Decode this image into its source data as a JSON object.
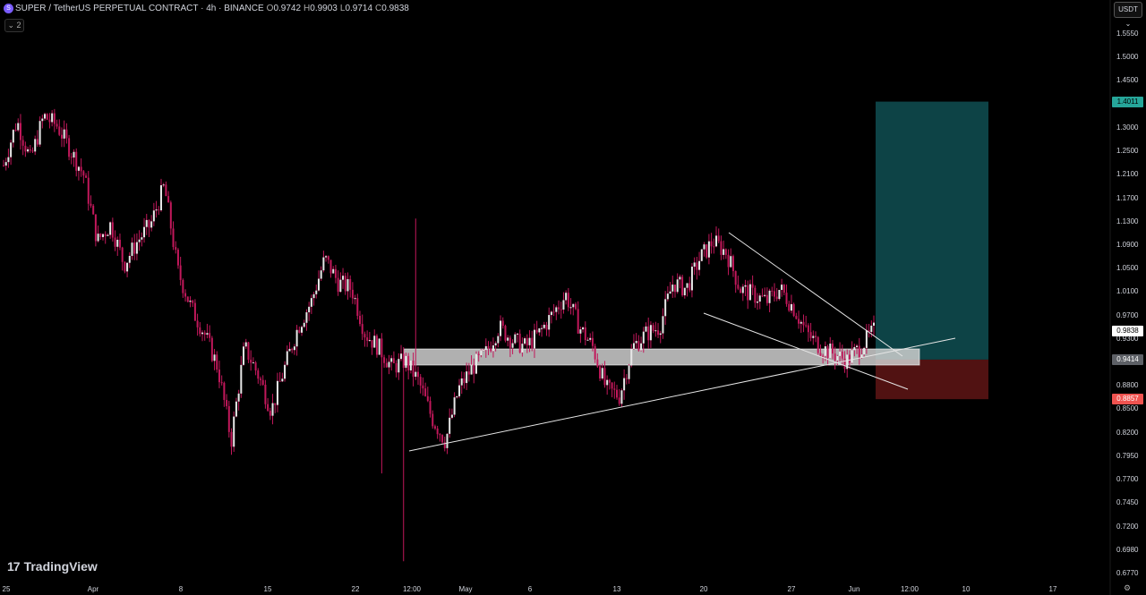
{
  "header": {
    "title": "SUPER / TetherUS PERPETUAL CONTRACT · 4h · BINANCE",
    "icon": "super-coin-icon",
    "icon_glyph": "S",
    "open_label": "O",
    "open": "0.9742",
    "high_label": "H",
    "high": "0.9903",
    "low_label": "L",
    "low": "0.9714",
    "close_label": "C",
    "close": "0.9838"
  },
  "indicator_toggle": "⌄ 2",
  "currency_button": "USDT ⌄",
  "logo": {
    "mark": "17",
    "text": "TradingView"
  },
  "price_axis": {
    "ticks": [
      "1.5550",
      "1.5000",
      "1.4500",
      "1.3500",
      "1.3000",
      "1.2500",
      "1.2100",
      "1.1700",
      "1.1300",
      "1.0900",
      "1.0500",
      "1.0100",
      "0.9700",
      "0.9300",
      "0.9100",
      "0.8800",
      "0.8500",
      "0.8200",
      "0.7950",
      "0.7700",
      "0.7450",
      "0.7200",
      "0.6980",
      "0.6770"
    ]
  },
  "price_tags": {
    "target": "1.4011",
    "current": "0.9838",
    "entry": "0.9414",
    "stop": "0.8857"
  },
  "time_axis": {
    "ticks": [
      "25",
      "Apr",
      "8",
      "15",
      "22",
      "12:00",
      "May",
      "6",
      "13",
      "20",
      "27",
      "Jun",
      "12:00",
      "10",
      "17"
    ]
  },
  "colors": {
    "background": "#000000",
    "candle": "#e8e8e8",
    "wick": "#c2185b",
    "target_zone": "#0f4f52",
    "stop_zone": "#5a1414",
    "support_zone": "#cfcfcf",
    "current_tag_bg": "#ffffff",
    "target_tag_bg": "#26a69a",
    "stop_tag_bg": "#ef5350",
    "entry_tag_bg": "#5d6066"
  },
  "chart_data": {
    "type": "candlestick",
    "title": "SUPER / TetherUS PERPETUAL CONTRACT · 4h · BINANCE",
    "timeframe": "4h",
    "y_scale": "log",
    "ylim": [
      0.677,
      1.555
    ],
    "close_path": [
      [
        "Mar 25",
        1.27
      ],
      [
        "Mar 26",
        1.36
      ],
      [
        "Mar 27",
        1.28
      ],
      [
        "Mar 29",
        1.37
      ],
      [
        "Apr 1",
        1.35
      ],
      [
        "Apr 2",
        1.3
      ],
      [
        "Apr 3",
        1.25
      ],
      [
        "Apr 4",
        1.13
      ],
      [
        "Apr 5",
        1.16
      ],
      [
        "Apr 6",
        1.09
      ],
      [
        "Apr 7",
        1.13
      ],
      [
        "Apr 8",
        1.16
      ],
      [
        "Apr 9",
        1.23
      ],
      [
        "Apr 10",
        1.08
      ],
      [
        "Apr 11",
        1.02
      ],
      [
        "Apr 12",
        0.98
      ],
      [
        "Apr 13",
        0.93
      ],
      [
        "Apr 14",
        0.83
      ],
      [
        "Apr 15",
        0.96
      ],
      [
        "Apr 16",
        0.92
      ],
      [
        "Apr 17",
        0.87
      ],
      [
        "Apr 18",
        0.93
      ],
      [
        "Apr 19",
        0.99
      ],
      [
        "Apr 20",
        1.03
      ],
      [
        "Apr 22",
        1.1
      ],
      [
        "Apr 23",
        1.06
      ],
      [
        "Apr 24",
        1.05
      ],
      [
        "Apr 25",
        0.98
      ],
      [
        "Apr 26",
        0.96
      ],
      [
        "Apr 27",
        0.93
      ],
      [
        "Apr 28",
        0.94
      ],
      [
        "Apr 29",
        0.91
      ],
      [
        "Apr 30",
        0.86
      ],
      [
        "May 1",
        0.83
      ],
      [
        "May 2",
        0.9
      ],
      [
        "May 3",
        0.93
      ],
      [
        "May 4",
        0.95
      ],
      [
        "May 5",
        0.99
      ],
      [
        "May 6",
        0.97
      ],
      [
        "May 7",
        0.96
      ],
      [
        "May 8",
        0.98
      ],
      [
        "May 9",
        1.01
      ],
      [
        "May 10",
        1.04
      ],
      [
        "May 11",
        0.99
      ],
      [
        "May 12",
        0.96
      ],
      [
        "May 13",
        0.9
      ],
      [
        "May 14",
        0.89
      ],
      [
        "May 15",
        0.96
      ],
      [
        "May 16",
        0.98
      ],
      [
        "May 17",
        0.99
      ],
      [
        "May 18",
        1.06
      ],
      [
        "May 19",
        1.05
      ],
      [
        "May 20",
        1.1
      ],
      [
        "May 21",
        1.13
      ],
      [
        "May 22",
        1.11
      ],
      [
        "May 23",
        1.05
      ],
      [
        "May 24",
        1.04
      ],
      [
        "May 25",
        1.03
      ],
      [
        "May 26",
        1.05
      ],
      [
        "May 27",
        1.02
      ],
      [
        "May 28",
        0.98
      ],
      [
        "May 29",
        0.96
      ],
      [
        "May 30",
        0.95
      ],
      [
        "May 31",
        0.94
      ],
      [
        "Jun 1",
        0.96
      ],
      [
        "Jun 2",
        0.9838
      ]
    ],
    "position": {
      "target": 1.4011,
      "entry": 0.9414,
      "stop": 0.8857
    }
  }
}
